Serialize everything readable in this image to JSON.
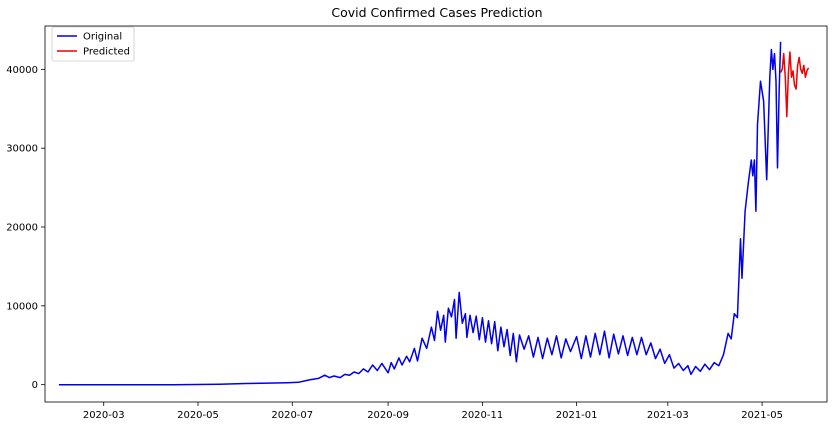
{
  "chart_data": {
    "type": "line",
    "title": "Covid Confirmed Cases Prediction",
    "xlabel": "",
    "ylabel": "",
    "x_range": [
      "2020-01-23",
      "2021-06-12"
    ],
    "ylim": [
      -2200,
      45500
    ],
    "x_ticks": [
      "2020-03",
      "2020-05",
      "2020-07",
      "2020-09",
      "2020-11",
      "2021-01",
      "2021-03",
      "2021-05"
    ],
    "x_tick_dates": [
      "2020-03-01",
      "2020-05-01",
      "2020-07-01",
      "2020-09-01",
      "2020-11-01",
      "2021-01-01",
      "2021-03-01",
      "2021-05-01"
    ],
    "y_ticks": [
      0,
      10000,
      20000,
      30000,
      40000
    ],
    "grid": false,
    "legend_position": "upper-left",
    "series": [
      {
        "name": "Original",
        "color": "#0000ee",
        "points": [
          [
            "2020-02-01",
            0
          ],
          [
            "2020-03-15",
            0
          ],
          [
            "2020-04-15",
            0
          ],
          [
            "2020-05-15",
            50
          ],
          [
            "2020-06-01",
            150
          ],
          [
            "2020-06-15",
            200
          ],
          [
            "2020-06-28",
            250
          ],
          [
            "2020-07-05",
            300
          ],
          [
            "2020-07-12",
            600
          ],
          [
            "2020-07-18",
            800
          ],
          [
            "2020-07-22",
            1200
          ],
          [
            "2020-07-25",
            900
          ],
          [
            "2020-07-28",
            1100
          ],
          [
            "2020-08-01",
            900
          ],
          [
            "2020-08-04",
            1300
          ],
          [
            "2020-08-07",
            1200
          ],
          [
            "2020-08-10",
            1600
          ],
          [
            "2020-08-13",
            1400
          ],
          [
            "2020-08-16",
            2000
          ],
          [
            "2020-08-19",
            1600
          ],
          [
            "2020-08-22",
            2500
          ],
          [
            "2020-08-25",
            1800
          ],
          [
            "2020-08-28",
            2700
          ],
          [
            "2020-09-01",
            1500
          ],
          [
            "2020-09-03",
            2800
          ],
          [
            "2020-09-05",
            2000
          ],
          [
            "2020-09-08",
            3400
          ],
          [
            "2020-09-10",
            2500
          ],
          [
            "2020-09-13",
            3600
          ],
          [
            "2020-09-15",
            2900
          ],
          [
            "2020-09-18",
            4600
          ],
          [
            "2020-09-20",
            3000
          ],
          [
            "2020-09-23",
            5900
          ],
          [
            "2020-09-26",
            4600
          ],
          [
            "2020-09-29",
            7300
          ],
          [
            "2020-10-01",
            5600
          ],
          [
            "2020-10-03",
            9300
          ],
          [
            "2020-10-05",
            6900
          ],
          [
            "2020-10-07",
            8800
          ],
          [
            "2020-10-08",
            5400
          ],
          [
            "2020-10-10",
            9700
          ],
          [
            "2020-10-12",
            8600
          ],
          [
            "2020-10-14",
            10800
          ],
          [
            "2020-10-15",
            5900
          ],
          [
            "2020-10-17",
            11700
          ],
          [
            "2020-10-19",
            7800
          ],
          [
            "2020-10-21",
            9000
          ],
          [
            "2020-10-22",
            6000
          ],
          [
            "2020-10-24",
            8800
          ],
          [
            "2020-10-26",
            6600
          ],
          [
            "2020-10-28",
            8700
          ],
          [
            "2020-10-30",
            5700
          ],
          [
            "2020-11-01",
            8500
          ],
          [
            "2020-11-03",
            5400
          ],
          [
            "2020-11-05",
            8100
          ],
          [
            "2020-11-07",
            5200
          ],
          [
            "2020-11-09",
            8000
          ],
          [
            "2020-11-11",
            4300
          ],
          [
            "2020-11-13",
            7300
          ],
          [
            "2020-11-15",
            4800
          ],
          [
            "2020-11-17",
            7000
          ],
          [
            "2020-11-19",
            3700
          ],
          [
            "2020-11-21",
            6500
          ],
          [
            "2020-11-23",
            2900
          ],
          [
            "2020-11-25",
            6300
          ],
          [
            "2020-11-28",
            4500
          ],
          [
            "2020-12-01",
            6200
          ],
          [
            "2020-12-04",
            3500
          ],
          [
            "2020-12-07",
            6000
          ],
          [
            "2020-12-10",
            3300
          ],
          [
            "2020-12-13",
            5900
          ],
          [
            "2020-12-16",
            3800
          ],
          [
            "2020-12-19",
            6200
          ],
          [
            "2020-12-22",
            3400
          ],
          [
            "2020-12-25",
            5800
          ],
          [
            "2020-12-28",
            4200
          ],
          [
            "2021-01-01",
            6100
          ],
          [
            "2021-01-04",
            3300
          ],
          [
            "2021-01-07",
            6200
          ],
          [
            "2021-01-10",
            3500
          ],
          [
            "2021-01-13",
            6500
          ],
          [
            "2021-01-16",
            3800
          ],
          [
            "2021-01-19",
            6800
          ],
          [
            "2021-01-22",
            3400
          ],
          [
            "2021-01-25",
            6400
          ],
          [
            "2021-01-28",
            3900
          ],
          [
            "2021-01-31",
            6200
          ],
          [
            "2021-02-03",
            3700
          ],
          [
            "2021-02-06",
            6000
          ],
          [
            "2021-02-09",
            3800
          ],
          [
            "2021-02-12",
            6000
          ],
          [
            "2021-02-15",
            3800
          ],
          [
            "2021-02-18",
            5300
          ],
          [
            "2021-02-21",
            3300
          ],
          [
            "2021-02-24",
            4500
          ],
          [
            "2021-02-27",
            2700
          ],
          [
            "2021-03-02",
            3800
          ],
          [
            "2021-03-05",
            2100
          ],
          [
            "2021-03-08",
            2700
          ],
          [
            "2021-03-11",
            1800
          ],
          [
            "2021-03-14",
            2400
          ],
          [
            "2021-03-16",
            1300
          ],
          [
            "2021-03-19",
            2300
          ],
          [
            "2021-03-22",
            1700
          ],
          [
            "2021-03-25",
            2600
          ],
          [
            "2021-03-28",
            1900
          ],
          [
            "2021-03-31",
            2800
          ],
          [
            "2021-04-03",
            2400
          ],
          [
            "2021-04-06",
            3800
          ],
          [
            "2021-04-09",
            6500
          ],
          [
            "2021-04-11",
            5800
          ],
          [
            "2021-04-13",
            9000
          ],
          [
            "2021-04-15",
            8500
          ],
          [
            "2021-04-17",
            18500
          ],
          [
            "2021-04-18",
            13500
          ],
          [
            "2021-04-20",
            22000
          ],
          [
            "2021-04-22",
            25500
          ],
          [
            "2021-04-24",
            28500
          ],
          [
            "2021-04-25",
            26500
          ],
          [
            "2021-04-26",
            28500
          ],
          [
            "2021-04-27",
            22000
          ],
          [
            "2021-04-28",
            33000
          ],
          [
            "2021-04-30",
            38500
          ],
          [
            "2021-05-02",
            36000
          ],
          [
            "2021-05-04",
            26000
          ],
          [
            "2021-05-06",
            39000
          ],
          [
            "2021-05-07",
            42500
          ],
          [
            "2021-05-08",
            40000
          ],
          [
            "2021-05-09",
            42000
          ],
          [
            "2021-05-10",
            38500
          ],
          [
            "2021-05-11",
            27500
          ],
          [
            "2021-05-12",
            37000
          ],
          [
            "2021-05-13",
            43500
          ]
        ]
      },
      {
        "name": "Predicted",
        "color": "#ee0000",
        "points": [
          [
            "2021-05-13",
            39600
          ],
          [
            "2021-05-14",
            40000
          ],
          [
            "2021-05-15",
            42000
          ],
          [
            "2021-05-16",
            39000
          ],
          [
            "2021-05-17",
            34000
          ],
          [
            "2021-05-18",
            39500
          ],
          [
            "2021-05-19",
            42200
          ],
          [
            "2021-05-20",
            39000
          ],
          [
            "2021-05-21",
            39800
          ],
          [
            "2021-05-22",
            38000
          ],
          [
            "2021-05-23",
            37500
          ],
          [
            "2021-05-24",
            40500
          ],
          [
            "2021-05-25",
            41500
          ],
          [
            "2021-05-26",
            40000
          ],
          [
            "2021-05-27",
            39500
          ],
          [
            "2021-05-28",
            40500
          ],
          [
            "2021-05-29",
            39000
          ],
          [
            "2021-05-30",
            39800
          ],
          [
            "2021-05-31",
            40200
          ]
        ]
      }
    ]
  }
}
